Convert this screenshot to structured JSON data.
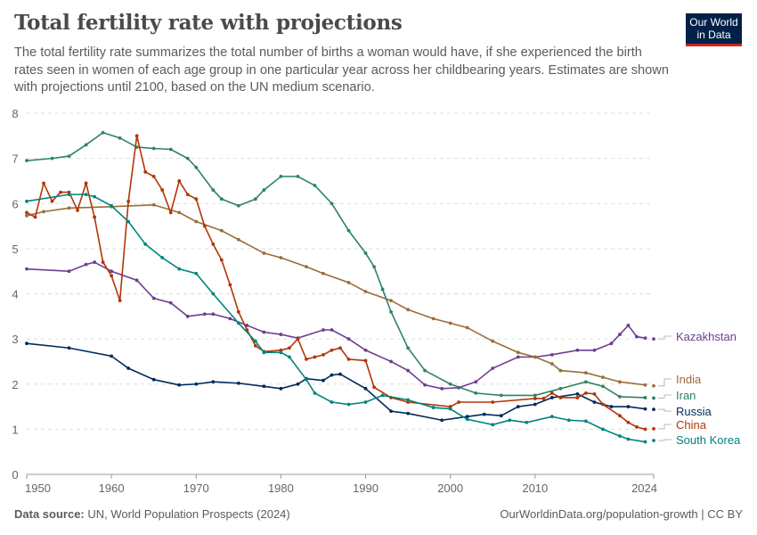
{
  "header": {
    "title": "Total fertility rate with projections",
    "subtitle": "The total fertility rate summarizes the total number of births a woman would have, if she experienced the birth rates seen in women of each age group in one particular year across her childbearing years. Estimates are shown with projections until 2100, based on the UN medium scenario.",
    "logo": "Our World in Data"
  },
  "footer": {
    "source_label": "Data source:",
    "source": "UN, World Population Prospects (2024)",
    "credit": "OurWorldinData.org/population-growth | CC BY"
  },
  "chart_data": {
    "type": "line",
    "title": "Total fertility rate with projections",
    "xlabel": "",
    "ylabel": "",
    "xlim": [
      1950,
      2024
    ],
    "ylim": [
      0,
      8
    ],
    "grid": "horizontal dashed",
    "legend": "right end labels",
    "x_ticks": [
      "1950",
      "1960",
      "1970",
      "1980",
      "1990",
      "2000",
      "2010",
      "2024"
    ],
    "y_ticks": [
      "0",
      "1",
      "2",
      "3",
      "4",
      "5",
      "6",
      "7",
      "8"
    ],
    "series": [
      {
        "name": "Kazakhstan",
        "color": "#6d3e91",
        "points": [
          [
            1950,
            4.55
          ],
          [
            1955,
            4.5
          ],
          [
            1957,
            4.65
          ],
          [
            1958,
            4.7
          ],
          [
            1960,
            4.5
          ],
          [
            1963,
            4.3
          ],
          [
            1965,
            3.9
          ],
          [
            1967,
            3.8
          ],
          [
            1969,
            3.5
          ],
          [
            1971,
            3.55
          ],
          [
            1972,
            3.55
          ],
          [
            1974,
            3.45
          ],
          [
            1976,
            3.3
          ],
          [
            1978,
            3.15
          ],
          [
            1980,
            3.1
          ],
          [
            1982,
            3.02
          ],
          [
            1985,
            3.2
          ],
          [
            1986,
            3.2
          ],
          [
            1988,
            3.0
          ],
          [
            1990,
            2.75
          ],
          [
            1993,
            2.5
          ],
          [
            1995,
            2.3
          ],
          [
            1997,
            1.98
          ],
          [
            1999,
            1.9
          ],
          [
            2001,
            1.92
          ],
          [
            2003,
            2.05
          ],
          [
            2005,
            2.35
          ],
          [
            2008,
            2.6
          ],
          [
            2010,
            2.6
          ],
          [
            2012,
            2.65
          ],
          [
            2015,
            2.75
          ],
          [
            2017,
            2.75
          ],
          [
            2019,
            2.9
          ],
          [
            2020,
            3.1
          ],
          [
            2021,
            3.3
          ],
          [
            2022,
            3.05
          ],
          [
            2023,
            3.02
          ],
          [
            2024,
            3.0
          ]
        ]
      },
      {
        "name": "India",
        "color": "#996d39",
        "points": [
          [
            1950,
            5.73
          ],
          [
            1952,
            5.82
          ],
          [
            1955,
            5.9
          ],
          [
            1960,
            5.93
          ],
          [
            1965,
            5.97
          ],
          [
            1968,
            5.8
          ],
          [
            1970,
            5.6
          ],
          [
            1973,
            5.4
          ],
          [
            1975,
            5.2
          ],
          [
            1978,
            4.9
          ],
          [
            1980,
            4.8
          ],
          [
            1983,
            4.6
          ],
          [
            1985,
            4.45
          ],
          [
            1988,
            4.25
          ],
          [
            1990,
            4.05
          ],
          [
            1993,
            3.85
          ],
          [
            1995,
            3.65
          ],
          [
            1998,
            3.45
          ],
          [
            2000,
            3.35
          ],
          [
            2002,
            3.25
          ],
          [
            2005,
            2.95
          ],
          [
            2008,
            2.7
          ],
          [
            2010,
            2.6
          ],
          [
            2012,
            2.45
          ],
          [
            2013,
            2.3
          ],
          [
            2016,
            2.25
          ],
          [
            2018,
            2.15
          ],
          [
            2020,
            2.05
          ],
          [
            2023,
            1.98
          ],
          [
            2024,
            1.96
          ]
        ]
      },
      {
        "name": "Iran",
        "color": "#2c8465",
        "points": [
          [
            1950,
            6.95
          ],
          [
            1953,
            7.0
          ],
          [
            1955,
            7.05
          ],
          [
            1957,
            7.3
          ],
          [
            1959,
            7.57
          ],
          [
            1961,
            7.45
          ],
          [
            1963,
            7.25
          ],
          [
            1965,
            7.22
          ],
          [
            1967,
            7.2
          ],
          [
            1969,
            7.0
          ],
          [
            1970,
            6.8
          ],
          [
            1972,
            6.3
          ],
          [
            1973,
            6.1
          ],
          [
            1975,
            5.95
          ],
          [
            1977,
            6.1
          ],
          [
            1978,
            6.3
          ],
          [
            1980,
            6.6
          ],
          [
            1982,
            6.6
          ],
          [
            1984,
            6.4
          ],
          [
            1986,
            6.0
          ],
          [
            1988,
            5.4
          ],
          [
            1990,
            4.9
          ],
          [
            1991,
            4.6
          ],
          [
            1992,
            4.1
          ],
          [
            1993,
            3.6
          ],
          [
            1995,
            2.8
          ],
          [
            1997,
            2.3
          ],
          [
            2000,
            2.0
          ],
          [
            2003,
            1.8
          ],
          [
            2006,
            1.75
          ],
          [
            2010,
            1.75
          ],
          [
            2013,
            1.9
          ],
          [
            2016,
            2.05
          ],
          [
            2018,
            1.95
          ],
          [
            2020,
            1.72
          ],
          [
            2023,
            1.7
          ],
          [
            2024,
            1.69
          ]
        ]
      },
      {
        "name": "Russia",
        "color": "#00295b",
        "points": [
          [
            1950,
            2.9
          ],
          [
            1955,
            2.8
          ],
          [
            1960,
            2.62
          ],
          [
            1962,
            2.35
          ],
          [
            1965,
            2.1
          ],
          [
            1968,
            1.98
          ],
          [
            1970,
            2.0
          ],
          [
            1972,
            2.05
          ],
          [
            1975,
            2.02
          ],
          [
            1978,
            1.95
          ],
          [
            1980,
            1.9
          ],
          [
            1982,
            2.0
          ],
          [
            1983,
            2.12
          ],
          [
            1985,
            2.08
          ],
          [
            1986,
            2.2
          ],
          [
            1987,
            2.22
          ],
          [
            1990,
            1.9
          ],
          [
            1993,
            1.4
          ],
          [
            1995,
            1.35
          ],
          [
            1999,
            1.2
          ],
          [
            2002,
            1.28
          ],
          [
            2004,
            1.33
          ],
          [
            2006,
            1.3
          ],
          [
            2008,
            1.5
          ],
          [
            2010,
            1.55
          ],
          [
            2012,
            1.7
          ],
          [
            2015,
            1.78
          ],
          [
            2017,
            1.6
          ],
          [
            2019,
            1.5
          ],
          [
            2021,
            1.5
          ],
          [
            2023,
            1.45
          ],
          [
            2024,
            1.44
          ]
        ]
      },
      {
        "name": "China",
        "color": "#b13507",
        "points": [
          [
            1950,
            5.8
          ],
          [
            1951,
            5.7
          ],
          [
            1952,
            6.45
          ],
          [
            1953,
            6.05
          ],
          [
            1954,
            6.25
          ],
          [
            1955,
            6.25
          ],
          [
            1956,
            5.85
          ],
          [
            1957,
            6.45
          ],
          [
            1958,
            5.7
          ],
          [
            1959,
            4.7
          ],
          [
            1960,
            4.4
          ],
          [
            1961,
            3.85
          ],
          [
            1962,
            6.05
          ],
          [
            1963,
            7.5
          ],
          [
            1964,
            6.7
          ],
          [
            1965,
            6.6
          ],
          [
            1966,
            6.3
          ],
          [
            1967,
            5.8
          ],
          [
            1968,
            6.5
          ],
          [
            1969,
            6.2
          ],
          [
            1970,
            6.1
          ],
          [
            1971,
            5.5
          ],
          [
            1972,
            5.1
          ],
          [
            1973,
            4.75
          ],
          [
            1974,
            4.2
          ],
          [
            1975,
            3.6
          ],
          [
            1976,
            3.2
          ],
          [
            1977,
            2.85
          ],
          [
            1978,
            2.72
          ],
          [
            1980,
            2.75
          ],
          [
            1981,
            2.8
          ],
          [
            1982,
            3.0
          ],
          [
            1983,
            2.55
          ],
          [
            1984,
            2.6
          ],
          [
            1985,
            2.65
          ],
          [
            1986,
            2.75
          ],
          [
            1987,
            2.8
          ],
          [
            1988,
            2.55
          ],
          [
            1990,
            2.52
          ],
          [
            1991,
            1.93
          ],
          [
            1993,
            1.7
          ],
          [
            1995,
            1.6
          ],
          [
            2000,
            1.5
          ],
          [
            2001,
            1.6
          ],
          [
            2005,
            1.6
          ],
          [
            2010,
            1.68
          ],
          [
            2011,
            1.68
          ],
          [
            2012,
            1.8
          ],
          [
            2013,
            1.7
          ],
          [
            2015,
            1.7
          ],
          [
            2016,
            1.8
          ],
          [
            2017,
            1.78
          ],
          [
            2018,
            1.55
          ],
          [
            2020,
            1.3
          ],
          [
            2021,
            1.15
          ],
          [
            2022,
            1.05
          ],
          [
            2023,
            1.0
          ],
          [
            2024,
            1.01
          ]
        ]
      },
      {
        "name": "South Korea",
        "color": "#00847e",
        "points": [
          [
            1950,
            6.05
          ],
          [
            1955,
            6.2
          ],
          [
            1957,
            6.2
          ],
          [
            1958,
            6.15
          ],
          [
            1960,
            5.95
          ],
          [
            1962,
            5.6
          ],
          [
            1964,
            5.1
          ],
          [
            1966,
            4.8
          ],
          [
            1968,
            4.55
          ],
          [
            1970,
            4.45
          ],
          [
            1972,
            4.0
          ],
          [
            1975,
            3.35
          ],
          [
            1977,
            2.95
          ],
          [
            1978,
            2.7
          ],
          [
            1980,
            2.7
          ],
          [
            1981,
            2.6
          ],
          [
            1983,
            2.1
          ],
          [
            1984,
            1.8
          ],
          [
            1986,
            1.6
          ],
          [
            1988,
            1.55
          ],
          [
            1990,
            1.6
          ],
          [
            1992,
            1.75
          ],
          [
            1995,
            1.65
          ],
          [
            1998,
            1.48
          ],
          [
            2000,
            1.45
          ],
          [
            2002,
            1.22
          ],
          [
            2005,
            1.1
          ],
          [
            2007,
            1.2
          ],
          [
            2009,
            1.15
          ],
          [
            2012,
            1.28
          ],
          [
            2014,
            1.2
          ],
          [
            2016,
            1.18
          ],
          [
            2018,
            1.0
          ],
          [
            2020,
            0.85
          ],
          [
            2021,
            0.78
          ],
          [
            2023,
            0.72
          ],
          [
            2024,
            0.75
          ]
        ]
      }
    ]
  }
}
